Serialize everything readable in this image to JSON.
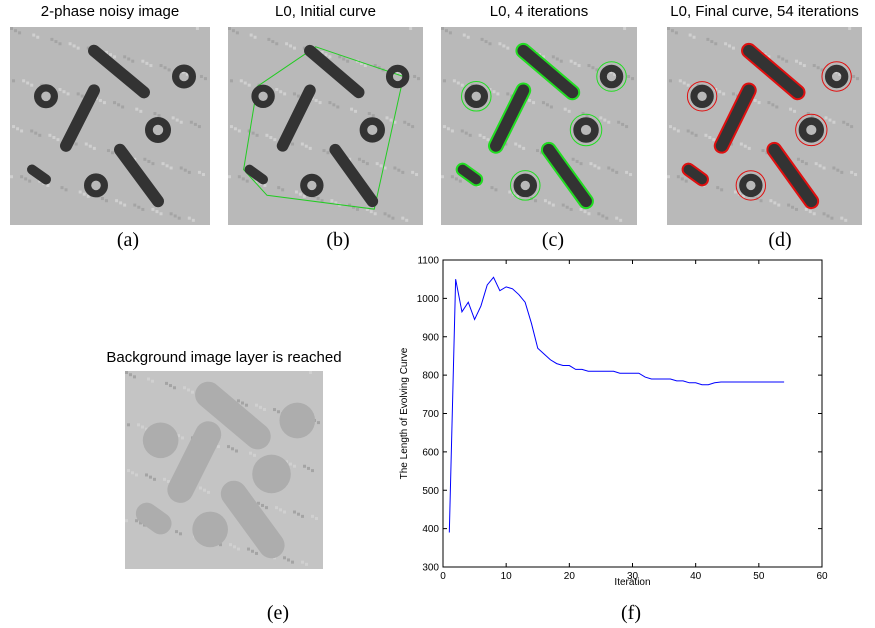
{
  "panels": [
    {
      "title": "2-phase noisy image",
      "caption": "(a)"
    },
    {
      "title": "L0, Initial curve",
      "caption": "(b)"
    },
    {
      "title": "L0, 4 iterations",
      "caption": "(c)"
    },
    {
      "title": "L0, Final curve, 54 iterations",
      "caption": "(d)"
    },
    {
      "title": "Background image layer is reached",
      "caption": "(e)"
    }
  ],
  "chart_caption": "(f)",
  "chart_data": {
    "type": "line",
    "x_label": "Iteration",
    "y_label": "The Length of Evolving Curve",
    "x": [
      1,
      2,
      3,
      4,
      5,
      6,
      7,
      8,
      9,
      10,
      11,
      12,
      13,
      14,
      15,
      16,
      17,
      18,
      19,
      20,
      21,
      22,
      23,
      24,
      25,
      26,
      27,
      28,
      29,
      30,
      31,
      32,
      33,
      34,
      35,
      36,
      37,
      38,
      39,
      40,
      41,
      42,
      43,
      44,
      45,
      46,
      47,
      48,
      49,
      50,
      51,
      52,
      53,
      54
    ],
    "series": [
      {
        "color": "#0000ff",
        "values": [
          390,
          1050,
          965,
          990,
          945,
          980,
          1035,
          1055,
          1020,
          1030,
          1025,
          1010,
          990,
          935,
          870,
          855,
          840,
          830,
          825,
          825,
          815,
          815,
          810,
          810,
          810,
          810,
          810,
          805,
          805,
          805,
          805,
          795,
          790,
          790,
          790,
          790,
          785,
          785,
          780,
          780,
          775,
          775,
          780,
          782,
          782,
          782,
          782,
          782,
          782,
          782,
          782,
          782,
          782,
          782
        ]
      }
    ],
    "xlim": [
      0,
      60
    ],
    "xticks": [
      0,
      10,
      20,
      30,
      40,
      50,
      60
    ],
    "ylim": [
      300,
      1100
    ],
    "yticks": [
      300,
      400,
      500,
      600,
      700,
      800,
      900,
      1000,
      1100
    ],
    "grid": false
  }
}
